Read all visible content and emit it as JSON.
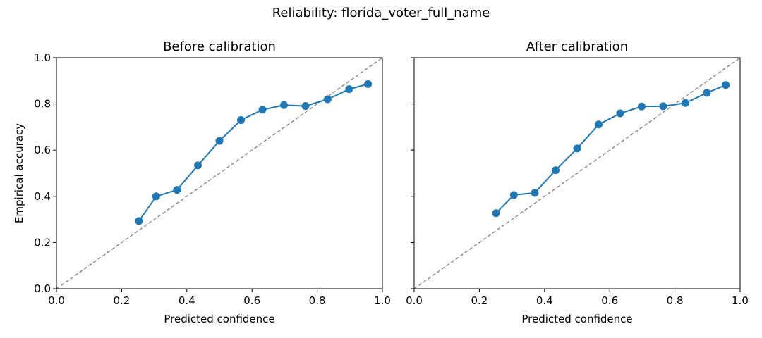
{
  "figure": {
    "title": "Reliability: florida_voter_full_name"
  },
  "chart_data": [
    {
      "type": "line",
      "title": "Before calibration",
      "xlabel": "Predicted confidence",
      "ylabel": "Empirical accuracy",
      "xlim": [
        0.0,
        1.0
      ],
      "ylim": [
        0.0,
        1.0
      ],
      "xticks": [
        "0.0",
        "0.2",
        "0.4",
        "0.6",
        "0.8",
        "1.0"
      ],
      "yticks": [
        "0.0",
        "0.2",
        "0.4",
        "0.6",
        "0.8",
        "1.0"
      ],
      "show_yticklabels": true,
      "grid": false,
      "reference_line": {
        "x": [
          0.0,
          1.0
        ],
        "y": [
          0.0,
          1.0
        ],
        "style": "dashed",
        "color": "#808080"
      },
      "series": [
        {
          "color": "#1f77b4",
          "x": [
            0.253,
            0.306,
            0.37,
            0.434,
            0.5,
            0.566,
            0.632,
            0.698,
            0.764,
            0.832,
            0.898,
            0.956
          ],
          "y": [
            0.293,
            0.4,
            0.428,
            0.534,
            0.64,
            0.73,
            0.775,
            0.795,
            0.791,
            0.82,
            0.864,
            0.886
          ]
        }
      ]
    },
    {
      "type": "line",
      "title": "After calibration",
      "xlabel": "Predicted confidence",
      "ylabel": "",
      "xlim": [
        0.0,
        1.0
      ],
      "ylim": [
        0.0,
        1.0
      ],
      "xticks": [
        "0.0",
        "0.2",
        "0.4",
        "0.6",
        "0.8",
        "1.0"
      ],
      "yticks": [],
      "show_yticklabels": false,
      "grid": false,
      "reference_line": {
        "x": [
          0.0,
          1.0
        ],
        "y": [
          0.0,
          1.0
        ],
        "style": "dashed",
        "color": "#808080"
      },
      "series": [
        {
          "color": "#1f77b4",
          "x": [
            0.251,
            0.306,
            0.37,
            0.434,
            0.5,
            0.566,
            0.632,
            0.698,
            0.764,
            0.832,
            0.898,
            0.956
          ],
          "y": [
            0.327,
            0.406,
            0.415,
            0.513,
            0.607,
            0.711,
            0.759,
            0.789,
            0.79,
            0.804,
            0.848,
            0.882
          ]
        }
      ]
    }
  ]
}
